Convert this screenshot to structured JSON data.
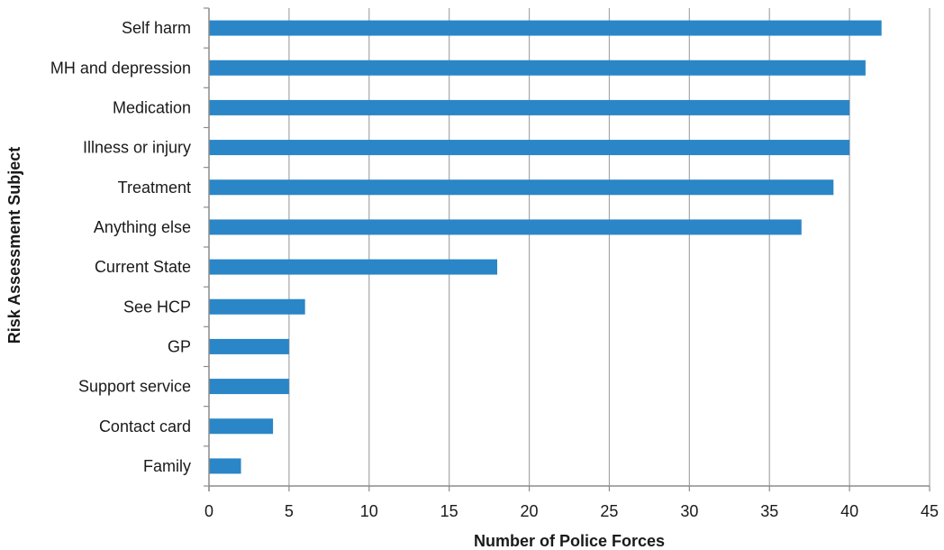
{
  "chart_data": {
    "type": "bar",
    "orientation": "horizontal",
    "categories": [
      "Self harm",
      "MH and depression",
      "Medication",
      "Illness or injury",
      "Treatment",
      "Anything else",
      "Current State",
      "See HCP",
      "GP",
      "Support service",
      "Contact card",
      "Family"
    ],
    "values": [
      42,
      41,
      40,
      40,
      39,
      37,
      18,
      6,
      5,
      5,
      4,
      2
    ],
    "xlabel": "Number of Police Forces",
    "ylabel": "Risk Assessment Subject",
    "xlim": [
      0,
      45
    ],
    "xticks": [
      "0",
      "5",
      "10",
      "15",
      "20",
      "25",
      "30",
      "35",
      "40",
      "45"
    ],
    "grid": "vertical",
    "legend": "none",
    "colors": {
      "bar": "#2a86c6",
      "grid": "#a6a6a6",
      "axis": "#8c8c8c"
    }
  }
}
